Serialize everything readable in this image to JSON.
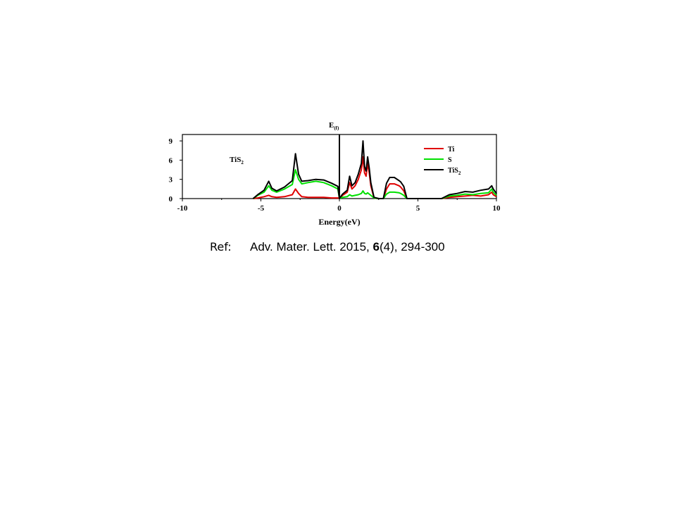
{
  "chart_data": {
    "type": "line",
    "title": "",
    "xlabel": "Energy(eV)",
    "ylabel": "",
    "xlim": [
      -10,
      10
    ],
    "ylim": [
      0,
      10
    ],
    "x_ticks": [
      -10,
      -5,
      0,
      5,
      10
    ],
    "y_ticks": [
      0,
      3,
      6,
      9
    ],
    "grid": false,
    "legend_position": "top-right",
    "inner_label": {
      "main": "TiS",
      "sub": "2"
    },
    "fermi_label": {
      "main": "E",
      "sub": "(f)"
    },
    "fermi_level": 0,
    "series": [
      {
        "name": "Ti",
        "legend_main": "Ti",
        "legend_sub": "",
        "color": "#e00000",
        "points": [
          [
            -5.5,
            0
          ],
          [
            -5.2,
            0.1
          ],
          [
            -4.8,
            0.3
          ],
          [
            -4.5,
            0.5
          ],
          [
            -4.3,
            0.3
          ],
          [
            -4.0,
            0.2
          ],
          [
            -3.5,
            0.3
          ],
          [
            -3.0,
            0.6
          ],
          [
            -2.8,
            1.5
          ],
          [
            -2.6,
            0.8
          ],
          [
            -2.4,
            0.3
          ],
          [
            -2.0,
            0.2
          ],
          [
            -1.5,
            0.2
          ],
          [
            -1.0,
            0.2
          ],
          [
            -0.5,
            0.1
          ],
          [
            -0.1,
            0.1
          ],
          [
            0.0,
            0
          ],
          [
            0.2,
            0.5
          ],
          [
            0.5,
            1.0
          ],
          [
            0.65,
            2.5
          ],
          [
            0.8,
            1.5
          ],
          [
            1.0,
            2.0
          ],
          [
            1.2,
            3.0
          ],
          [
            1.4,
            4.5
          ],
          [
            1.5,
            6.5
          ],
          [
            1.6,
            4.0
          ],
          [
            1.7,
            3.5
          ],
          [
            1.8,
            5.5
          ],
          [
            1.9,
            4.0
          ],
          [
            2.0,
            2.0
          ],
          [
            2.2,
            0.1
          ],
          [
            2.5,
            0
          ],
          [
            2.8,
            0
          ],
          [
            3.0,
            1.5
          ],
          [
            3.2,
            2.3
          ],
          [
            3.5,
            2.3
          ],
          [
            3.8,
            2.0
          ],
          [
            3.9,
            1.8
          ],
          [
            4.1,
            1.2
          ],
          [
            4.3,
            0
          ],
          [
            6.5,
            0
          ],
          [
            7.0,
            0.2
          ],
          [
            7.5,
            0.3
          ],
          [
            8.0,
            0.4
          ],
          [
            8.5,
            0.5
          ],
          [
            9.0,
            0.4
          ],
          [
            9.5,
            0.6
          ],
          [
            9.7,
            1.0
          ],
          [
            9.8,
            0.6
          ],
          [
            10.0,
            0.3
          ]
        ]
      },
      {
        "name": "S",
        "legend_main": "S",
        "legend_sub": "",
        "color": "#00e000",
        "points": [
          [
            -5.5,
            0
          ],
          [
            -5.2,
            0.5
          ],
          [
            -4.8,
            1.0
          ],
          [
            -4.5,
            2.0
          ],
          [
            -4.3,
            1.3
          ],
          [
            -4.0,
            1.0
          ],
          [
            -3.5,
            1.5
          ],
          [
            -3.0,
            2.2
          ],
          [
            -2.8,
            4.5
          ],
          [
            -2.6,
            3.0
          ],
          [
            -2.4,
            2.3
          ],
          [
            -2.0,
            2.5
          ],
          [
            -1.5,
            2.7
          ],
          [
            -1.0,
            2.5
          ],
          [
            -0.5,
            2.0
          ],
          [
            -0.1,
            1.5
          ],
          [
            0.0,
            0
          ],
          [
            0.2,
            0.2
          ],
          [
            0.5,
            0.3
          ],
          [
            0.65,
            0.6
          ],
          [
            0.8,
            0.4
          ],
          [
            1.0,
            0.5
          ],
          [
            1.2,
            0.6
          ],
          [
            1.4,
            0.8
          ],
          [
            1.5,
            1.2
          ],
          [
            1.6,
            0.8
          ],
          [
            1.7,
            0.7
          ],
          [
            1.8,
            0.9
          ],
          [
            1.9,
            0.7
          ],
          [
            2.0,
            0.5
          ],
          [
            2.2,
            0.1
          ],
          [
            2.5,
            0
          ],
          [
            2.8,
            0
          ],
          [
            3.0,
            0.7
          ],
          [
            3.2,
            1.0
          ],
          [
            3.5,
            1.0
          ],
          [
            3.8,
            0.9
          ],
          [
            3.9,
            0.8
          ],
          [
            4.1,
            0.5
          ],
          [
            4.3,
            0
          ],
          [
            6.5,
            0
          ],
          [
            7.0,
            0.4
          ],
          [
            7.5,
            0.5
          ],
          [
            8.0,
            0.7
          ],
          [
            8.5,
            0.6
          ],
          [
            9.0,
            0.8
          ],
          [
            9.5,
            0.9
          ],
          [
            9.7,
            1.5
          ],
          [
            9.8,
            1.0
          ],
          [
            10.0,
            0.5
          ]
        ]
      },
      {
        "name": "TiS2",
        "legend_main": "TiS",
        "legend_sub": "2",
        "color": "#000000",
        "points": [
          [
            -5.5,
            0
          ],
          [
            -5.2,
            0.6
          ],
          [
            -4.8,
            1.3
          ],
          [
            -4.5,
            2.7
          ],
          [
            -4.3,
            1.6
          ],
          [
            -4.0,
            1.2
          ],
          [
            -3.5,
            1.8
          ],
          [
            -3.0,
            2.8
          ],
          [
            -2.8,
            7.0
          ],
          [
            -2.6,
            3.8
          ],
          [
            -2.4,
            2.7
          ],
          [
            -2.0,
            2.8
          ],
          [
            -1.5,
            3.0
          ],
          [
            -1.0,
            2.9
          ],
          [
            -0.5,
            2.4
          ],
          [
            -0.1,
            1.9
          ],
          [
            0.0,
            0
          ],
          [
            0.2,
            0.7
          ],
          [
            0.5,
            1.3
          ],
          [
            0.65,
            3.5
          ],
          [
            0.8,
            2.0
          ],
          [
            1.0,
            2.5
          ],
          [
            1.2,
            3.8
          ],
          [
            1.4,
            5.5
          ],
          [
            1.5,
            9.0
          ],
          [
            1.6,
            5.0
          ],
          [
            1.7,
            4.3
          ],
          [
            1.8,
            6.5
          ],
          [
            1.9,
            4.7
          ],
          [
            2.0,
            2.5
          ],
          [
            2.2,
            0.2
          ],
          [
            2.5,
            0
          ],
          [
            2.8,
            0
          ],
          [
            3.0,
            2.4
          ],
          [
            3.2,
            3.3
          ],
          [
            3.5,
            3.3
          ],
          [
            3.8,
            2.8
          ],
          [
            3.9,
            2.6
          ],
          [
            4.1,
            1.9
          ],
          [
            4.3,
            0
          ],
          [
            6.5,
            0
          ],
          [
            7.0,
            0.6
          ],
          [
            7.5,
            0.8
          ],
          [
            8.0,
            1.1
          ],
          [
            8.5,
            1.0
          ],
          [
            9.0,
            1.3
          ],
          [
            9.5,
            1.5
          ],
          [
            9.7,
            2.0
          ],
          [
            9.8,
            1.5
          ],
          [
            10.0,
            0.8
          ]
        ]
      }
    ]
  },
  "reference": {
    "label": "Ref:",
    "journal": "Adv. Mater. Lett. 2015, ",
    "volume": "6",
    "issue_pages": "(4), 294-300"
  }
}
